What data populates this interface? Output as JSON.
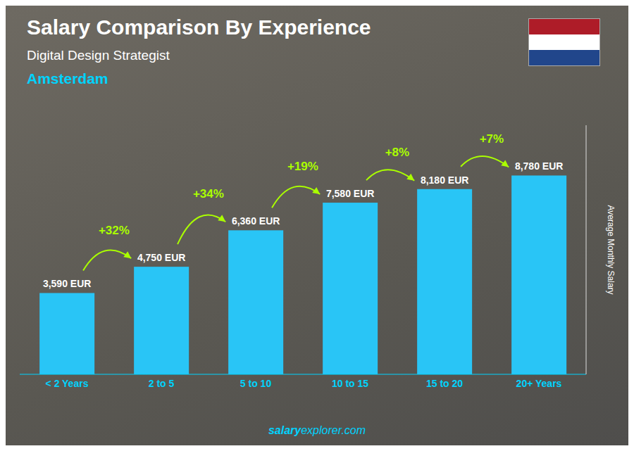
{
  "chart_data": {
    "type": "bar",
    "title": "Salary Comparison By Experience",
    "subtitle": "Digital Design Strategist",
    "categories": [
      "< 2 Years",
      "2 to 5",
      "5 to 10",
      "10 to 15",
      "15 to 20",
      "20+ Years"
    ],
    "values": [
      3590,
      4750,
      6360,
      7580,
      8180,
      8780
    ],
    "value_labels": [
      "3,590 EUR",
      "4,750 EUR",
      "6,360 EUR",
      "7,580 EUR",
      "8,180 EUR",
      "8,780 EUR"
    ],
    "data_labels": true,
    "color": "#29c5f6",
    "ylabel": "Average Monthly Salary",
    "ylim": [
      0,
      11000
    ],
    "tick_labels": "x",
    "grid": false,
    "annotations": {
      "city": "Amsterdam",
      "growth": {
        "labels": [
          "+32%",
          "+34%",
          "+19%",
          "+8%",
          "+7%"
        ],
        "color": "#aaff00"
      },
      "footer": [
        "salary",
        "explorer.com"
      ]
    }
  }
}
